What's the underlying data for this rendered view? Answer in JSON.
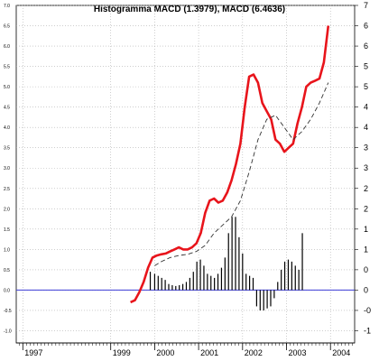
{
  "chart_data": {
    "type": "line",
    "title": "Histogramma MACD (1.3979), MACD (6.4636)",
    "xlabel": "",
    "ylabel": "",
    "x_range": [
      1996.85,
      2004.55
    ],
    "ylim": [
      -1.3,
      7.0
    ],
    "y_ticks_left": [
      "7.0",
      "6.5",
      "6.0",
      "5.5",
      "5.0",
      "4.5",
      "4.0",
      "3.5",
      "3.0",
      "2.5",
      "2.0",
      "1.5",
      "1.0",
      "0.5",
      "0.0",
      "-0.5",
      "-1.0"
    ],
    "y_tick_values": [
      7.0,
      6.5,
      6.0,
      5.5,
      5.0,
      4.5,
      4.0,
      3.5,
      3.0,
      2.5,
      2.0,
      1.5,
      1.0,
      0.5,
      0.0,
      -0.5,
      -1.0
    ],
    "y_ticks_right": [
      "7",
      "6",
      "6",
      "5",
      "5",
      "4",
      "4",
      "3",
      "3",
      "2",
      "2",
      "1",
      "1",
      "0",
      "0",
      "-0",
      "-1"
    ],
    "x_ticks": [
      {
        "label": "1997",
        "value": 1997
      },
      {
        "label": "1999",
        "value": 1999
      },
      {
        "label": "2000",
        "value": 2000
      },
      {
        "label": "2001",
        "value": 2001
      },
      {
        "label": "2002",
        "value": 2002
      },
      {
        "label": "2003",
        "value": 2003
      },
      {
        "label": "2004",
        "value": 2004
      }
    ],
    "grid": true,
    "legend": "none",
    "series": [
      {
        "role": "macd",
        "color": "#e8141b",
        "style": "solid",
        "x": [
          1999.45,
          1999.55,
          1999.65,
          1999.75,
          1999.85,
          1999.95,
          2000.05,
          2000.15,
          2000.25,
          2000.35,
          2000.45,
          2000.55,
          2000.65,
          2000.75,
          2000.85,
          2000.95,
          2001.05,
          2001.15,
          2001.25,
          2001.35,
          2001.45,
          2001.55,
          2001.65,
          2001.75,
          2001.85,
          2001.95,
          2002.05,
          2002.15,
          2002.25,
          2002.35,
          2002.45,
          2002.55,
          2002.65,
          2002.75,
          2002.85,
          2002.95,
          2003.05,
          2003.15,
          2003.25,
          2003.35,
          2003.45,
          2003.55,
          2003.65,
          2003.75,
          2003.85,
          2003.95
        ],
        "y": [
          -0.3,
          -0.25,
          -0.05,
          0.2,
          0.55,
          0.8,
          0.85,
          0.88,
          0.9,
          0.95,
          1.0,
          1.05,
          1.0,
          1.0,
          1.05,
          1.15,
          1.4,
          1.9,
          2.2,
          2.25,
          2.15,
          2.2,
          2.4,
          2.7,
          3.1,
          3.6,
          4.5,
          5.25,
          5.3,
          5.1,
          4.6,
          4.4,
          4.2,
          3.7,
          3.6,
          3.4,
          3.5,
          3.6,
          4.1,
          4.5,
          5.0,
          5.1,
          5.15,
          5.2,
          5.6,
          6.5
        ]
      },
      {
        "role": "signal",
        "color": "#333333",
        "style": "dashed",
        "x": [
          2000.0,
          2000.15,
          2000.35,
          2000.55,
          2000.75,
          2000.95,
          2001.15,
          2001.35,
          2001.55,
          2001.75,
          2001.95,
          2002.15,
          2002.35,
          2002.55,
          2002.75,
          2002.95,
          2003.15,
          2003.35,
          2003.55,
          2003.75,
          2003.95
        ],
        "y": [
          0.6,
          0.7,
          0.8,
          0.85,
          0.88,
          0.95,
          1.1,
          1.4,
          1.6,
          1.8,
          2.2,
          2.9,
          3.7,
          4.2,
          4.3,
          4.0,
          3.7,
          3.9,
          4.2,
          4.6,
          5.1
        ]
      }
    ],
    "histogram": {
      "color": "#000000",
      "x": [
        1999.9,
        2000.0,
        2000.08,
        2000.16,
        2000.24,
        2000.32,
        2000.4,
        2000.48,
        2000.56,
        2000.64,
        2000.72,
        2000.8,
        2000.88,
        2000.96,
        2001.04,
        2001.12,
        2001.2,
        2001.28,
        2001.36,
        2001.44,
        2001.52,
        2001.6,
        2001.68,
        2001.76,
        2001.84,
        2001.92,
        2002.0,
        2002.08,
        2002.16,
        2002.24,
        2002.32,
        2002.4,
        2002.48,
        2002.56,
        2002.64,
        2002.72,
        2002.8,
        2002.88,
        2002.96,
        2003.04,
        2003.12,
        2003.2,
        2003.28,
        2003.36,
        2003.44,
        2003.52,
        2003.6,
        2003.68,
        2003.76,
        2003.84,
        2003.92
      ],
      "values": [
        0.45,
        0.4,
        0.35,
        0.3,
        0.25,
        0.15,
        0.12,
        0.1,
        0.12,
        0.15,
        0.2,
        0.3,
        0.45,
        0.7,
        0.75,
        0.6,
        0.4,
        0.35,
        0.3,
        0.4,
        0.55,
        0.8,
        1.4,
        1.8,
        1.8,
        1.3,
        0.9,
        0.4,
        0.35,
        0.3,
        -0.4,
        -0.5,
        -0.5,
        -0.45,
        -0.4,
        -0.2,
        0.2,
        0.5,
        0.7,
        0.75,
        0.7,
        0.6,
        0.5,
        1.4,
        0.0,
        0.0,
        0.0,
        0.0,
        0.0,
        0.0,
        0.0
      ]
    },
    "zero_line_color": "#3b3bd6"
  }
}
